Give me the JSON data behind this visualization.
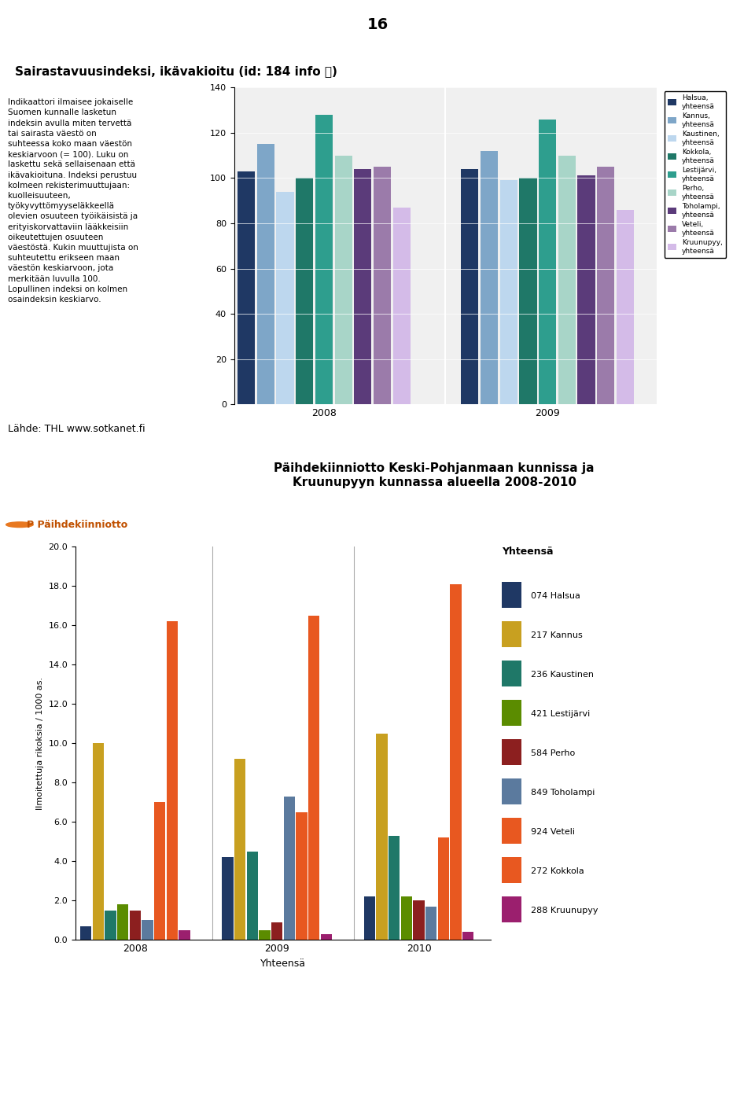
{
  "page_number": "16",
  "title1": "Sairastavuusindeksi, ikävakioitu (id: 184 info ⓘ)",
  "left_text": "Indikaattori ilmaisee jokaiselle\nSuomen kunnalle lasketun\nindeksin avulla miten tervettä\ntai sairasta väestö on\nsuhteessa koko maan väestön\nkeskiarvoon (= 100). Luku on\nlaskettu sekä sellaisenaan että\nikävakioituna. Indeksi perustuu\nkolmeen rekisterimuuttujaan:\nkuolleisuuteen,\ntyökyvyttömyyseläkkeellä\nolevien osuuteen työikäisistä ja\nerityiskorvattaviin lääkkeisiin\noikeutettujen osuuteen\nväestöstä. Kukin muuttujista on\nsuhteutettu erikseen maan\nväestön keskiarvoon, jota\nmerkitään luvulla 100.\nLopullinen indeksi on kolmen\nosaindeksin keskiarvo.",
  "source_text": "Lähde: THL www.sotkanet.fi",
  "chart1_years": [
    "2008",
    "2009"
  ],
  "chart1_legend": [
    "Halsua,\nyhteensä",
    "Kannus,\nyhteensä",
    "Kaustinen,\nyhteensä",
    "Kokkola,\nyhteensä",
    "Lestijärvi,\nyhteensä",
    "Perho,\nyhteensä",
    "Toholampi,\nyhteensä",
    "Veteli,\nyhteensä",
    "Kruunupyy,\nyhteensä"
  ],
  "chart1_colors": [
    "#1F3864",
    "#7EA6C8",
    "#BDD7EE",
    "#1F7868",
    "#2E9E8E",
    "#A8D5C8",
    "#5B3B7A",
    "#9B7BAA",
    "#D4BBE8"
  ],
  "chart1_data_2008": [
    103,
    115,
    94,
    100,
    128,
    110,
    104,
    105,
    87
  ],
  "chart1_data_2009": [
    104,
    112,
    99,
    100,
    126,
    110,
    101,
    105,
    86
  ],
  "chart1_ylim": [
    0,
    140
  ],
  "chart1_yticks": [
    0,
    20,
    40,
    60,
    80,
    100,
    120,
    140
  ],
  "title2": "Päihdekiinniotto Keski-Pohjanmaan kunnissa ja\nKruunupyyn kunnassa alueella 2008-2010",
  "chart2_ylabel": "Ilmoitettuja rikoksia / 1000 as.",
  "chart2_xlabel": "Yhteensä",
  "chart2_years": [
    "2008",
    "2009",
    "2010"
  ],
  "chart2_legend_title": "Yhteensä",
  "chart2_legend": [
    "074 Halsua",
    "217 Kannus",
    "236 Kaustinen",
    "421 Lestijärvi",
    "584 Perho",
    "849 Toholampi",
    "924 Veteli",
    "272 Kokkola",
    "288 Kruunupyy"
  ],
  "chart2_colors": [
    "#1F3864",
    "#C8A020",
    "#1F7868",
    "#5B8C00",
    "#8C1F1F",
    "#5B7A9E",
    "#E85820",
    "#E85820",
    "#9B1F6E"
  ],
  "chart2_data": {
    "2008": [
      0.7,
      10.0,
      1.5,
      1.8,
      1.5,
      1.0,
      7.0,
      16.2,
      0.5
    ],
    "2009": [
      4.2,
      9.2,
      4.5,
      0.5,
      0.9,
      7.3,
      6.5,
      16.5,
      0.3
    ],
    "2010": [
      2.2,
      10.5,
      5.3,
      2.2,
      2.0,
      1.7,
      5.2,
      18.1,
      0.4
    ]
  },
  "chart2_ylim": [
    0,
    20
  ],
  "chart2_yticks": [
    0.0,
    2.0,
    4.0,
    6.0,
    8.0,
    10.0,
    12.0,
    14.0,
    16.0,
    18.0,
    20.0
  ],
  "chart2_bar_colors_2008": [
    "#1F3864",
    "#C8A020",
    "#1F7868",
    "#5B8C00",
    "#8C1F1F",
    "#5B7A9E",
    "#E85820",
    "#E85820",
    "#9B1F6E"
  ],
  "chart2_bar_colors_2009": [
    "#1F3864",
    "#C8A020",
    "#1F7868",
    "#5B8C00",
    "#8C1F1F",
    "#5B7A9E",
    "#E85820",
    "#E85820",
    "#9B1F6E"
  ],
  "chart2_bar_colors_2010": [
    "#1F3864",
    "#C8A020",
    "#1F7868",
    "#5B8C00",
    "#8C1F1F",
    "#5B7A9E",
    "#E85820",
    "#E85820",
    "#9B1F6E"
  ]
}
